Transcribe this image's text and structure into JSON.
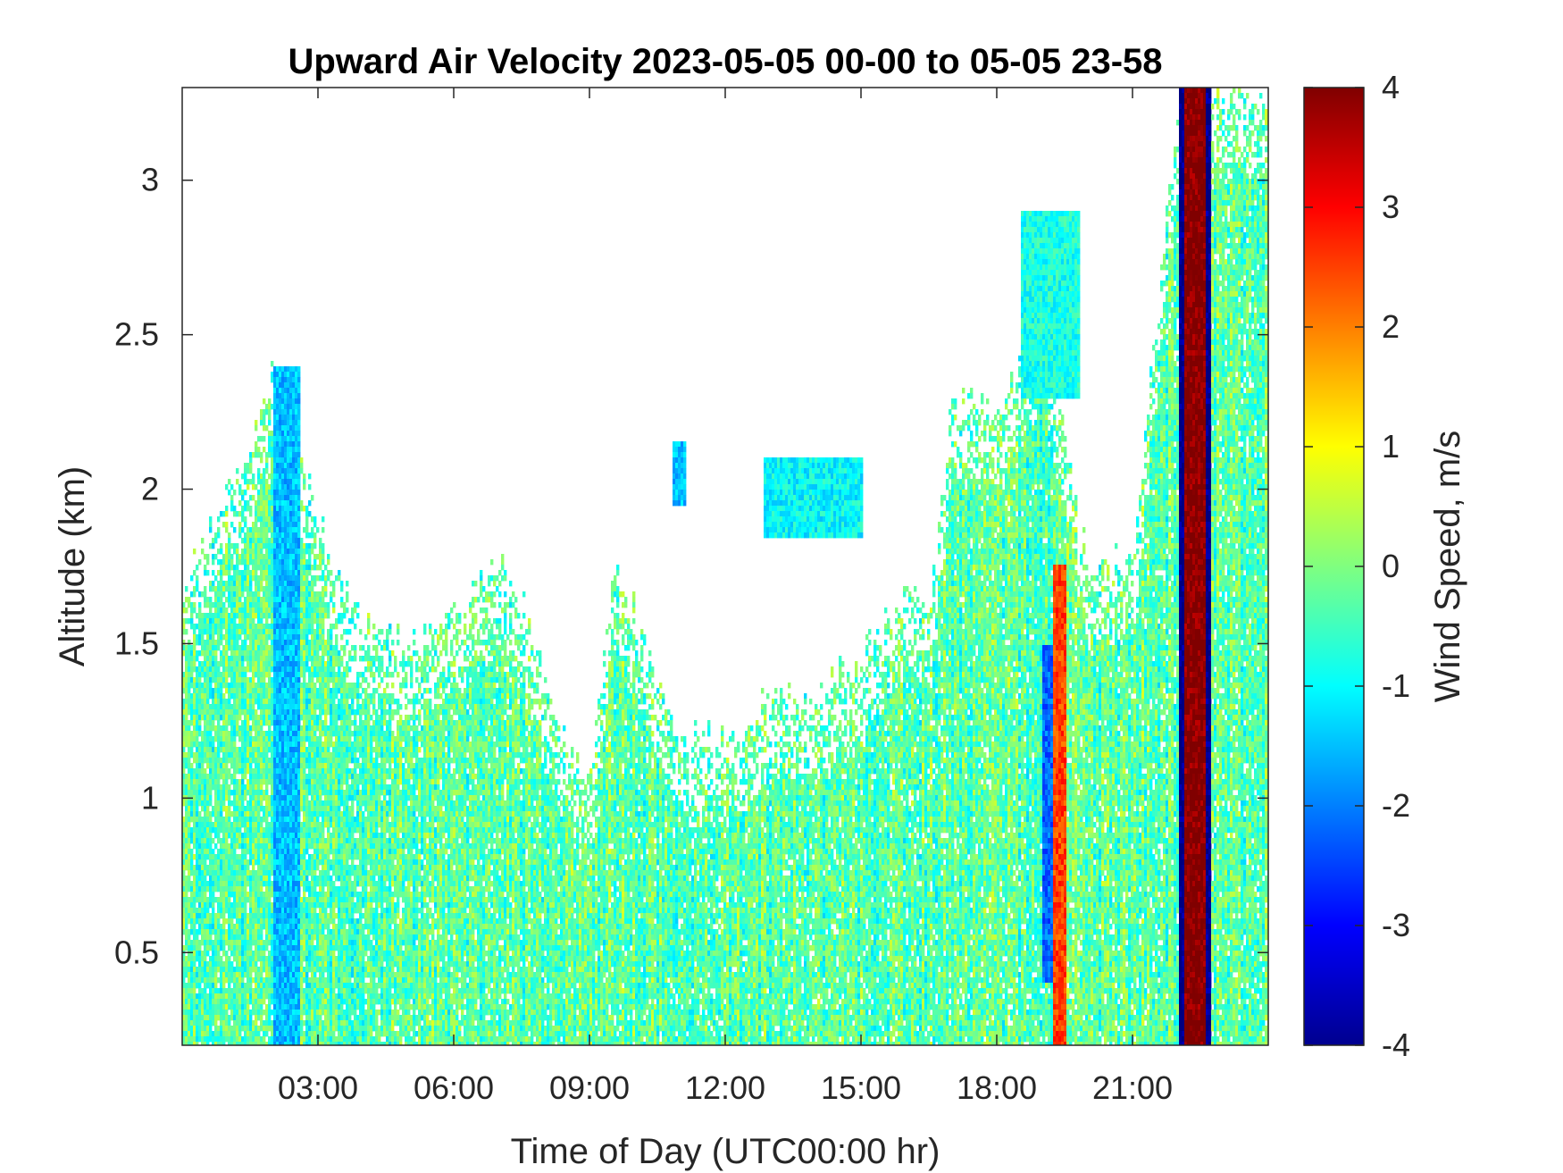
{
  "chart_data": {
    "type": "heatmap",
    "title": "Upward Air Velocity 2023-05-05 00-00 to 05-05 23-58",
    "xlabel": "Time of Day (UTC00:00 hr)",
    "ylabel": "Altitude (km)",
    "colorbar_label": "Wind Speed, m/s",
    "colormap": "jet",
    "xlim_hours": [
      0,
      24
    ],
    "ylim_km": [
      0.2,
      3.3
    ],
    "clim": [
      -4,
      4
    ],
    "x_ticks": [
      {
        "value": 3,
        "label": "03:00"
      },
      {
        "value": 6,
        "label": "06:00"
      },
      {
        "value": 9,
        "label": "09:00"
      },
      {
        "value": 12,
        "label": "12:00"
      },
      {
        "value": 15,
        "label": "15:00"
      },
      {
        "value": 18,
        "label": "18:00"
      },
      {
        "value": 21,
        "label": "21:00"
      }
    ],
    "y_ticks": [
      {
        "value": 0.5,
        "label": "0.5"
      },
      {
        "value": 1,
        "label": "1"
      },
      {
        "value": 1.5,
        "label": "1.5"
      },
      {
        "value": 2,
        "label": "2"
      },
      {
        "value": 2.5,
        "label": "2.5"
      },
      {
        "value": 3,
        "label": "3"
      }
    ],
    "colorbar_ticks": [
      {
        "value": 4,
        "label": "4"
      },
      {
        "value": 3,
        "label": "3"
      },
      {
        "value": 2,
        "label": "2"
      },
      {
        "value": 1,
        "label": "1"
      },
      {
        "value": 0,
        "label": "0"
      },
      {
        "value": -1,
        "label": "-1"
      },
      {
        "value": -2,
        "label": "-2"
      },
      {
        "value": -3,
        "label": "-3"
      },
      {
        "value": -4,
        "label": "-4"
      }
    ],
    "coverage_profile": {
      "hour": [
        0,
        0.5,
        1,
        1.5,
        2,
        2.5,
        3,
        3.5,
        4,
        5,
        6,
        7,
        7.5,
        8,
        8.5,
        9,
        9.5,
        10,
        11,
        12,
        13,
        14,
        15,
        16,
        16.5,
        17,
        18,
        19,
        20,
        21,
        22,
        23,
        24
      ],
      "max_altitude_km": [
        1.7,
        1.85,
        2.0,
        2.1,
        2.4,
        2.2,
        1.9,
        1.7,
        1.55,
        1.5,
        1.6,
        1.75,
        1.65,
        1.4,
        1.2,
        1.05,
        1.75,
        1.6,
        1.2,
        1.2,
        1.35,
        1.35,
        1.45,
        1.7,
        1.6,
        2.3,
        2.25,
        2.6,
        1.75,
        1.8,
        3.3,
        3.3,
        3.3
      ]
    },
    "features": [
      {
        "hour_range": [
          2.0,
          2.6
        ],
        "altitude_range_km": [
          0.2,
          2.4
        ],
        "velocity_ms": -1.5
      },
      {
        "hour_range": [
          12.8,
          15.0
        ],
        "altitude_range_km": [
          1.85,
          2.1
        ],
        "velocity_ms": -1.0
      },
      {
        "hour_range": [
          10.8,
          11.1
        ],
        "altitude_range_km": [
          1.95,
          2.15
        ],
        "velocity_ms": -1.5
      },
      {
        "hour_range": [
          18.5,
          19.8
        ],
        "altitude_range_km": [
          2.3,
          2.9
        ],
        "velocity_ms": -0.8
      },
      {
        "hour_range": [
          19.2,
          19.5
        ],
        "altitude_range_km": [
          0.2,
          1.75
        ],
        "velocity_ms": 2.5
      },
      {
        "hour_range": [
          19.0,
          19.2
        ],
        "altitude_range_km": [
          0.4,
          1.5
        ],
        "velocity_ms": -2.2
      },
      {
        "hour_range": [
          22.0,
          22.7
        ],
        "altitude_range_km": [
          0.2,
          3.3
        ],
        "velocity_ms": -4.0
      },
      {
        "hour_range": [
          22.1,
          22.6
        ],
        "altitude_range_km": [
          0.2,
          3.3
        ],
        "velocity_ms": 4.0
      }
    ]
  }
}
